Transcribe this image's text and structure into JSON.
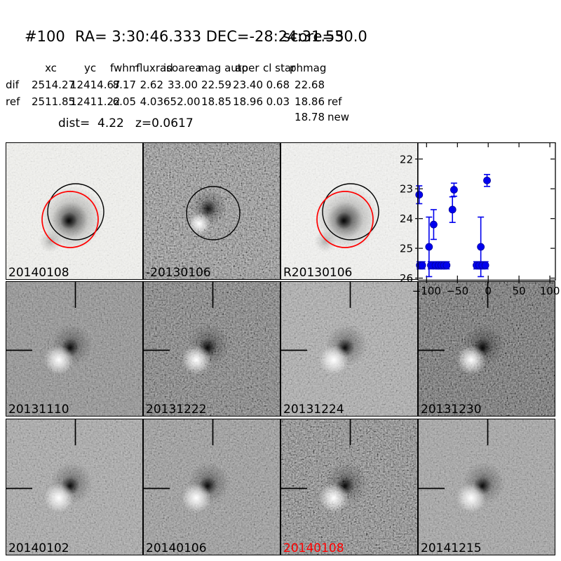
{
  "header": {
    "id": "#100",
    "coords": "RA= 3:30:46.333 DEC=-28:24:31.55",
    "score": "score=30.0"
  },
  "table": {
    "columns": [
      "xc",
      "yc",
      "fwhm",
      "fluxrad",
      "isoarea",
      "mag auto",
      "aper",
      "cl star",
      "phmag"
    ],
    "rows": [
      {
        "label": "dif",
        "values": [
          "2514.27",
          "12414.67",
          "8.17",
          "2.62",
          "33.00",
          "22.59",
          "23.40",
          "0.68",
          "22.68"
        ],
        "suffix": ""
      },
      {
        "label": "ref",
        "values": [
          "2511.85",
          "12411.22",
          "6.05",
          "4.03",
          "652.00",
          "18.85",
          "18.96",
          "0.03",
          "18.86"
        ],
        "suffix": "ref"
      }
    ],
    "extra": {
      "value": "18.78",
      "suffix": "new"
    }
  },
  "info": {
    "dist_label": "dist=",
    "dist_value": "4.22",
    "z": "z=0.0617"
  },
  "colors": {
    "accent_red": "#ff0000",
    "marker_blue": "#0000ee",
    "panel_border": "#000000"
  },
  "panels": [
    {
      "label": "20140108",
      "label_color": "#000000",
      "base": "#f3f3f0",
      "noise": 0.1,
      "type": "ref_circles"
    },
    {
      "label": "-20130106",
      "label_color": "#000000",
      "base": "#868686",
      "noise": 0.55,
      "type": "diff_circle"
    },
    {
      "label": "R20130106",
      "label_color": "#000000",
      "base": "#f4f4f2",
      "noise": 0.1,
      "type": "ref_circles"
    },
    {
      "label": "20131110",
      "label_color": "#000000",
      "base": "#8f8f8f",
      "noise": 0.3,
      "type": "dipole"
    },
    {
      "label": "20131222",
      "label_color": "#000000",
      "base": "#5f5f5f",
      "noise": 0.55,
      "type": "dipole"
    },
    {
      "label": "20131224",
      "label_color": "#000000",
      "base": "#aeaeae",
      "noise": 0.28,
      "type": "dipole"
    },
    {
      "label": "20131230",
      "label_color": "#000000",
      "base": "#525252",
      "noise": 0.5,
      "type": "dipole"
    },
    {
      "label": "20140102",
      "label_color": "#000000",
      "base": "#a9a9a9",
      "noise": 0.28,
      "type": "dipole"
    },
    {
      "label": "20140106",
      "label_color": "#000000",
      "base": "#989898",
      "noise": 0.35,
      "type": "dipole"
    },
    {
      "label": "20140108",
      "label_color": "#ff0000",
      "base": "#747474",
      "noise": 0.55,
      "type": "dipole"
    },
    {
      "label": "20141215",
      "label_color": "#000000",
      "base": "#a5a5a5",
      "noise": 0.25,
      "type": "dipole"
    }
  ],
  "chart_data": {
    "type": "scatter",
    "title": "",
    "xlabel": "",
    "ylabel": "",
    "y_inverted": true,
    "xlim": [
      -114,
      109
    ],
    "ylim": [
      26.08,
      21.44
    ],
    "xticks": [
      -100,
      -50,
      0,
      50,
      100
    ],
    "yticks": [
      22,
      23,
      24,
      25,
      26
    ],
    "xtick_labels": [
      "−100",
      "−50",
      "0",
      "50",
      "100"
    ],
    "ytick_labels": [
      "22",
      "23",
      "24",
      "25",
      "26"
    ],
    "grid": false,
    "legend": null,
    "marker": "o",
    "marker_color": "#0000ee",
    "points": [
      {
        "x": -112,
        "y": 23.2,
        "err": 0.3
      },
      {
        "x": -111,
        "y": 25.57,
        "err": 0.12
      },
      {
        "x": -107,
        "y": 25.57,
        "err": 0.12
      },
      {
        "x": -96,
        "y": 24.95,
        "err": 1.0
      },
      {
        "x": -93,
        "y": 25.57,
        "err": 0.12
      },
      {
        "x": -88.5,
        "y": 24.2,
        "err": 0.5
      },
      {
        "x": -85.5,
        "y": 25.57,
        "err": 0.12
      },
      {
        "x": -80.5,
        "y": 25.57,
        "err": 0.12
      },
      {
        "x": -76,
        "y": 25.57,
        "err": 0.12
      },
      {
        "x": -72,
        "y": 25.57,
        "err": 0.12
      },
      {
        "x": -67.5,
        "y": 25.57,
        "err": 0.12
      },
      {
        "x": -58,
        "y": 23.7,
        "err": 0.43
      },
      {
        "x": -55.5,
        "y": 23.03,
        "err": 0.22
      },
      {
        "x": -19,
        "y": 25.57,
        "err": 0.12
      },
      {
        "x": -14.5,
        "y": 25.57,
        "err": 0.12
      },
      {
        "x": -12,
        "y": 24.95,
        "err": 1.0
      },
      {
        "x": -9.5,
        "y": 25.57,
        "err": 0.12
      },
      {
        "x": -4.6,
        "y": 25.57,
        "err": 0.12
      },
      {
        "x": -1.9,
        "y": 22.72,
        "err": 0.2
      }
    ]
  }
}
